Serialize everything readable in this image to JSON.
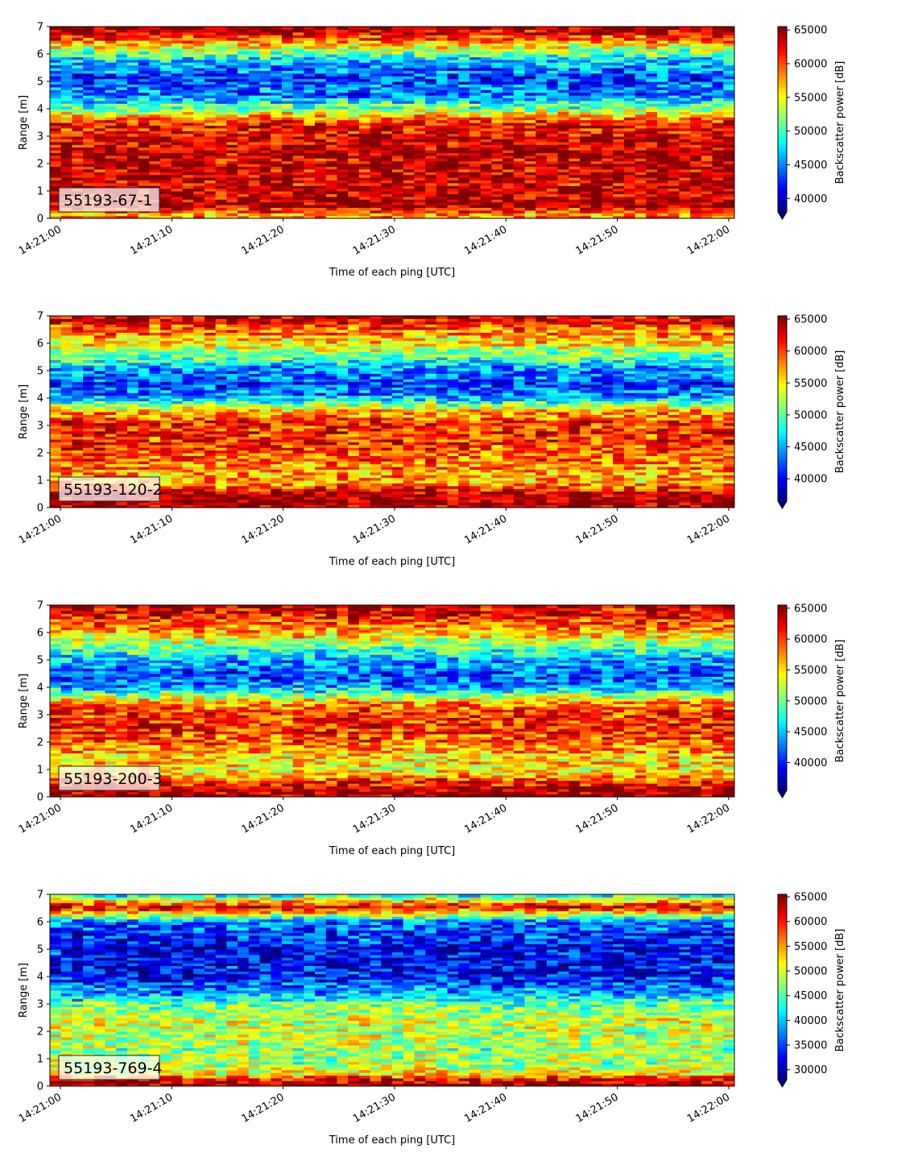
{
  "chart_data": [
    {
      "type": "heatmap",
      "label": "55193-67-1",
      "xlabel": "Time of each ping [UTC]",
      "ylabel": "Range [m]",
      "colorbar_label": "Backscatter power [dB]",
      "x_range": [
        "14:21:00",
        "14:22:00"
      ],
      "x_ticks": [
        "14:21:00",
        "14:21:10",
        "14:21:20",
        "14:21:30",
        "14:21:40",
        "14:21:50",
        "14:22:00"
      ],
      "ylim": [
        0,
        7
      ],
      "y_ticks": [
        "0",
        "1",
        "2",
        "3",
        "4",
        "5",
        "6",
        "7"
      ],
      "colorbar_range": [
        38000,
        65500
      ],
      "colorbar_ticks": [
        "40000",
        "45000",
        "50000",
        "55000",
        "60000",
        "65000"
      ],
      "colorbar_extend": "min",
      "colormap": "jet",
      "grid": false,
      "range_profile": [
        {
          "range_m": 0.15,
          "power": 58000
        },
        {
          "range_m": 0.5,
          "power": 65000
        },
        {
          "range_m": 1.0,
          "power": 63500
        },
        {
          "range_m": 1.5,
          "power": 63500
        },
        {
          "range_m": 2.0,
          "power": 63500
        },
        {
          "range_m": 2.5,
          "power": 63500
        },
        {
          "range_m": 3.0,
          "power": 63000
        },
        {
          "range_m": 3.5,
          "power": 61500
        },
        {
          "range_m": 4.0,
          "power": 52000
        },
        {
          "range_m": 4.5,
          "power": 45000
        },
        {
          "range_m": 5.0,
          "power": 43000
        },
        {
          "range_m": 5.5,
          "power": 45000
        },
        {
          "range_m": 6.0,
          "power": 51000
        },
        {
          "range_m": 6.5,
          "power": 60000
        },
        {
          "range_m": 7.0,
          "power": 65000
        }
      ]
    },
    {
      "type": "heatmap",
      "label": "55193-120-2",
      "xlabel": "Time of each ping [UTC]",
      "ylabel": "Range [m]",
      "colorbar_label": "Backscatter power [dB]",
      "x_range": [
        "14:21:00",
        "14:22:00"
      ],
      "x_ticks": [
        "14:21:00",
        "14:21:10",
        "14:21:20",
        "14:21:30",
        "14:21:40",
        "14:21:50",
        "14:22:00"
      ],
      "ylim": [
        0,
        7
      ],
      "y_ticks": [
        "0",
        "1",
        "2",
        "3",
        "4",
        "5",
        "6",
        "7"
      ],
      "colorbar_range": [
        36500,
        65500
      ],
      "colorbar_ticks": [
        "40000",
        "45000",
        "50000",
        "55000",
        "60000",
        "65000"
      ],
      "colorbar_extend": "min",
      "colormap": "jet",
      "grid": false,
      "range_profile": [
        {
          "range_m": 0.15,
          "power": 64500
        },
        {
          "range_m": 0.5,
          "power": 64000
        },
        {
          "range_m": 1.0,
          "power": 56000
        },
        {
          "range_m": 1.5,
          "power": 58000
        },
        {
          "range_m": 2.0,
          "power": 59500
        },
        {
          "range_m": 2.5,
          "power": 61000
        },
        {
          "range_m": 3.0,
          "power": 61500
        },
        {
          "range_m": 3.5,
          "power": 57000
        },
        {
          "range_m": 4.0,
          "power": 45000
        },
        {
          "range_m": 4.5,
          "power": 41500
        },
        {
          "range_m": 5.0,
          "power": 44000
        },
        {
          "range_m": 5.5,
          "power": 49500
        },
        {
          "range_m": 6.0,
          "power": 55000
        },
        {
          "range_m": 6.5,
          "power": 59000
        },
        {
          "range_m": 7.0,
          "power": 64000
        }
      ]
    },
    {
      "type": "heatmap",
      "label": "55193-200-3",
      "xlabel": "Time of each ping [UTC]",
      "ylabel": "Range [m]",
      "colorbar_label": "Backscatter power [dB]",
      "x_range": [
        "14:21:00",
        "14:22:00"
      ],
      "x_ticks": [
        "14:21:00",
        "14:21:10",
        "14:21:20",
        "14:21:30",
        "14:21:40",
        "14:21:50",
        "14:22:00"
      ],
      "ylim": [
        0,
        7
      ],
      "y_ticks": [
        "0",
        "1",
        "2",
        "3",
        "4",
        "5",
        "6",
        "7"
      ],
      "colorbar_range": [
        35500,
        65500
      ],
      "colorbar_ticks": [
        "40000",
        "45000",
        "50000",
        "55000",
        "60000",
        "65000"
      ],
      "colorbar_extend": "min",
      "colormap": "jet",
      "grid": false,
      "range_profile": [
        {
          "range_m": 0.15,
          "power": 64500
        },
        {
          "range_m": 0.5,
          "power": 62000
        },
        {
          "range_m": 1.0,
          "power": 54000
        },
        {
          "range_m": 1.5,
          "power": 55000
        },
        {
          "range_m": 2.0,
          "power": 58500
        },
        {
          "range_m": 2.5,
          "power": 60500
        },
        {
          "range_m": 3.0,
          "power": 61000
        },
        {
          "range_m": 3.5,
          "power": 56000
        },
        {
          "range_m": 4.0,
          "power": 44000
        },
        {
          "range_m": 4.5,
          "power": 41000
        },
        {
          "range_m": 5.0,
          "power": 44500
        },
        {
          "range_m": 5.5,
          "power": 50500
        },
        {
          "range_m": 6.0,
          "power": 56000
        },
        {
          "range_m": 6.5,
          "power": 60000
        },
        {
          "range_m": 7.0,
          "power": 64000
        }
      ]
    },
    {
      "type": "heatmap",
      "label": "55193-769-4",
      "xlabel": "Time of each ping [UTC]",
      "ylabel": "Range [m]",
      "colorbar_label": "Backscatter power [dB]",
      "x_range": [
        "14:21:00",
        "14:22:00"
      ],
      "x_ticks": [
        "14:21:00",
        "14:21:10",
        "14:21:20",
        "14:21:30",
        "14:21:40",
        "14:21:50",
        "14:22:00"
      ],
      "ylim": [
        0,
        7
      ],
      "y_ticks": [
        "0",
        "1",
        "2",
        "3",
        "4",
        "5",
        "6",
        "7"
      ],
      "colorbar_range": [
        28000,
        65500
      ],
      "colorbar_ticks": [
        "30000",
        "35000",
        "40000",
        "45000",
        "50000",
        "55000",
        "60000",
        "65000"
      ],
      "colorbar_extend": "min",
      "colormap": "jet",
      "grid": false,
      "range_profile": [
        {
          "range_m": 0.15,
          "power": 64000
        },
        {
          "range_m": 0.5,
          "power": 50000
        },
        {
          "range_m": 1.0,
          "power": 47000
        },
        {
          "range_m": 1.5,
          "power": 47500
        },
        {
          "range_m": 2.0,
          "power": 48500
        },
        {
          "range_m": 2.5,
          "power": 49000
        },
        {
          "range_m": 3.0,
          "power": 46000
        },
        {
          "range_m": 3.5,
          "power": 38000
        },
        {
          "range_m": 4.0,
          "power": 33000
        },
        {
          "range_m": 4.5,
          "power": 32000
        },
        {
          "range_m": 5.0,
          "power": 32500
        },
        {
          "range_m": 5.5,
          "power": 34000
        },
        {
          "range_m": 6.0,
          "power": 36500
        },
        {
          "range_m": 6.5,
          "power": 62000
        },
        {
          "range_m": 7.0,
          "power": 42000
        }
      ]
    }
  ]
}
